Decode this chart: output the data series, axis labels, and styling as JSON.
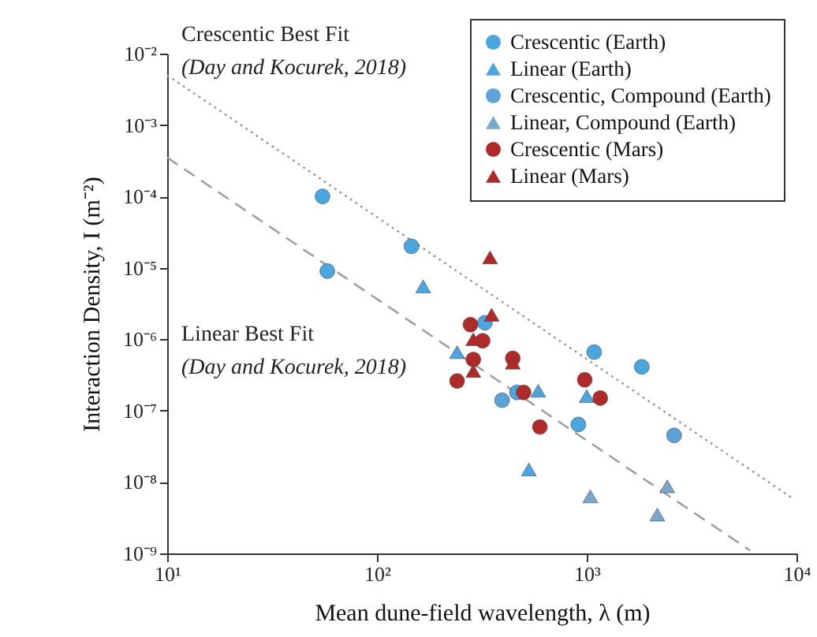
{
  "chart_data": {
    "type": "scatter",
    "xlabel": "Mean dune-field wavelength, λ (m)",
    "ylabel": "Interaction Density, I (m⁻²)",
    "log": "xy",
    "legend": "top right",
    "xlim": [
      10,
      10000
    ],
    "xticks": [
      {
        "value": 10,
        "label": "10¹"
      },
      {
        "value": 100,
        "label": "10²"
      },
      {
        "value": 1000,
        "label": "10³"
      },
      {
        "value": 10000,
        "label": "10⁴"
      }
    ],
    "ylim": [
      1e-09,
      0.01
    ],
    "yticks": [
      {
        "value": 1e-09,
        "label": "10⁻⁹"
      },
      {
        "value": 1e-08,
        "label": "10⁻⁸"
      },
      {
        "value": 1e-07,
        "label": "10⁻⁷"
      },
      {
        "value": 1e-06,
        "label": "10⁻⁶"
      },
      {
        "value": 1e-05,
        "label": "10⁻⁵"
      },
      {
        "value": 0.0001,
        "label": "10⁻⁴"
      },
      {
        "value": 0.001,
        "label": "10⁻³"
      },
      {
        "value": 0.01,
        "label": "10⁻²"
      }
    ],
    "annotations": [
      "Crescentic Best Fit",
      "(Day and Kocurek, 2018)",
      "Linear Best Fit",
      "(Day and Kocurek, 2018)"
    ],
    "series": [
      {
        "type": "line",
        "line_style": "dotted",
        "color": "#9a9a9a",
        "x": [
          10,
          9500
        ],
        "values": [
          0.005,
          6e-09
        ]
      },
      {
        "type": "line",
        "line_style": "dashed",
        "color": "#9a9a9a",
        "x": [
          10,
          6000
        ],
        "values": [
          0.00035,
          1.1e-09
        ]
      },
      {
        "name": "Crescentic (Earth)",
        "marker": "circle",
        "color": "#4ba6e0",
        "x": [
          55,
          58,
          146,
          327,
          465,
          1085,
          1830,
          912
        ],
        "values": [
          0.0001,
          9e-06,
          2e-05,
          1.7e-06,
          1.8e-07,
          6.6e-07,
          4.1e-07,
          6.4e-08
        ]
      },
      {
        "name": "Linear (Earth)",
        "marker": "triangle",
        "color": "#4ba6e0",
        "x": [
          166,
          241,
          587,
          1000,
          530
        ],
        "values": [
          5.5e-06,
          6.6e-07,
          1.9e-07,
          1.6e-07,
          1.5e-08
        ]
      },
      {
        "name": "Crescentic, Compound (Earth)",
        "marker": "circle",
        "color": "#5ea3d6",
        "x": [
          395,
          2610
        ],
        "values": [
          1.4e-07,
          4.5e-08
        ]
      },
      {
        "name": "Linear, Compound (Earth)",
        "marker": "triangle",
        "color": "#7aa7cc",
        "x": [
          1040,
          2420,
          2170
        ],
        "values": [
          6.3e-09,
          8.7e-09,
          3.5e-09
        ]
      },
      {
        "name": "Crescentic (Mars)",
        "marker": "circle",
        "color": "#b02a2a",
        "x": [
          279,
          319,
          288,
          241,
          444,
          500,
          598,
          978,
          1160
        ],
        "values": [
          1.6e-06,
          9.5e-07,
          5.2e-07,
          2.6e-07,
          5.4e-07,
          1.8e-07,
          5.9e-08,
          2.7e-07,
          1.5e-07
        ]
      },
      {
        "name": "Linear (Mars)",
        "marker": "triangle",
        "color": "#b02a2a",
        "x": [
          346,
          352,
          288,
          288,
          444
        ],
        "values": [
          1.4e-05,
          2.2e-06,
          1e-06,
          3.6e-07,
          4.7e-07
        ]
      }
    ]
  }
}
